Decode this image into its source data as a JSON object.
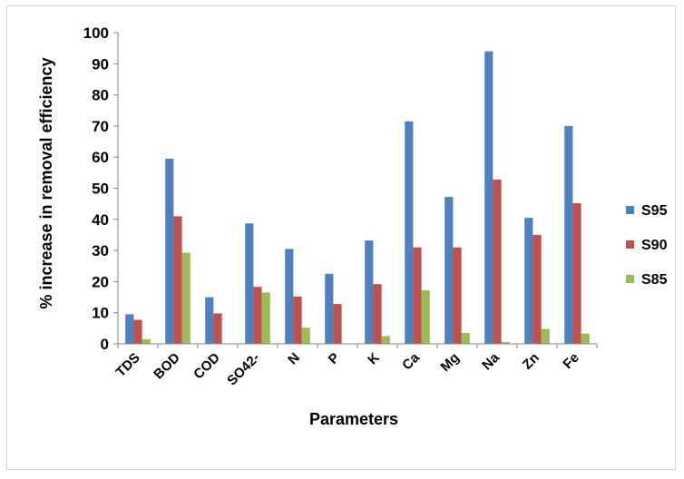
{
  "chart_data": {
    "type": "bar",
    "title": "",
    "xlabel": "Parameters",
    "ylabel": "% increase in removal efficiency",
    "ylim": [
      0,
      100
    ],
    "yticks": [
      0,
      10,
      20,
      30,
      40,
      50,
      60,
      70,
      80,
      90,
      100
    ],
    "grid": false,
    "legend_position": "right",
    "categories": [
      "TDS",
      "BOD",
      "COD",
      "SO42-",
      "N",
      "P",
      "K",
      "Ca",
      "Mg",
      "Na",
      "Zn",
      "Fe"
    ],
    "series": [
      {
        "name": "S95",
        "color": "#4F81BD",
        "values": [
          9.5,
          59.5,
          15,
          38.7,
          30.5,
          22.5,
          33.2,
          71.5,
          47.2,
          94,
          40.5,
          70
        ]
      },
      {
        "name": "S90",
        "color": "#C0504D",
        "values": [
          7.7,
          41,
          9.8,
          18.3,
          15.2,
          12.8,
          19.2,
          31,
          31,
          52.8,
          35,
          45.2
        ]
      },
      {
        "name": "S85",
        "color": "#9BBB59",
        "values": [
          1.5,
          29.3,
          0,
          16.5,
          5.2,
          0,
          2.5,
          17.2,
          3.5,
          0.6,
          4.8,
          3.3
        ]
      }
    ]
  }
}
